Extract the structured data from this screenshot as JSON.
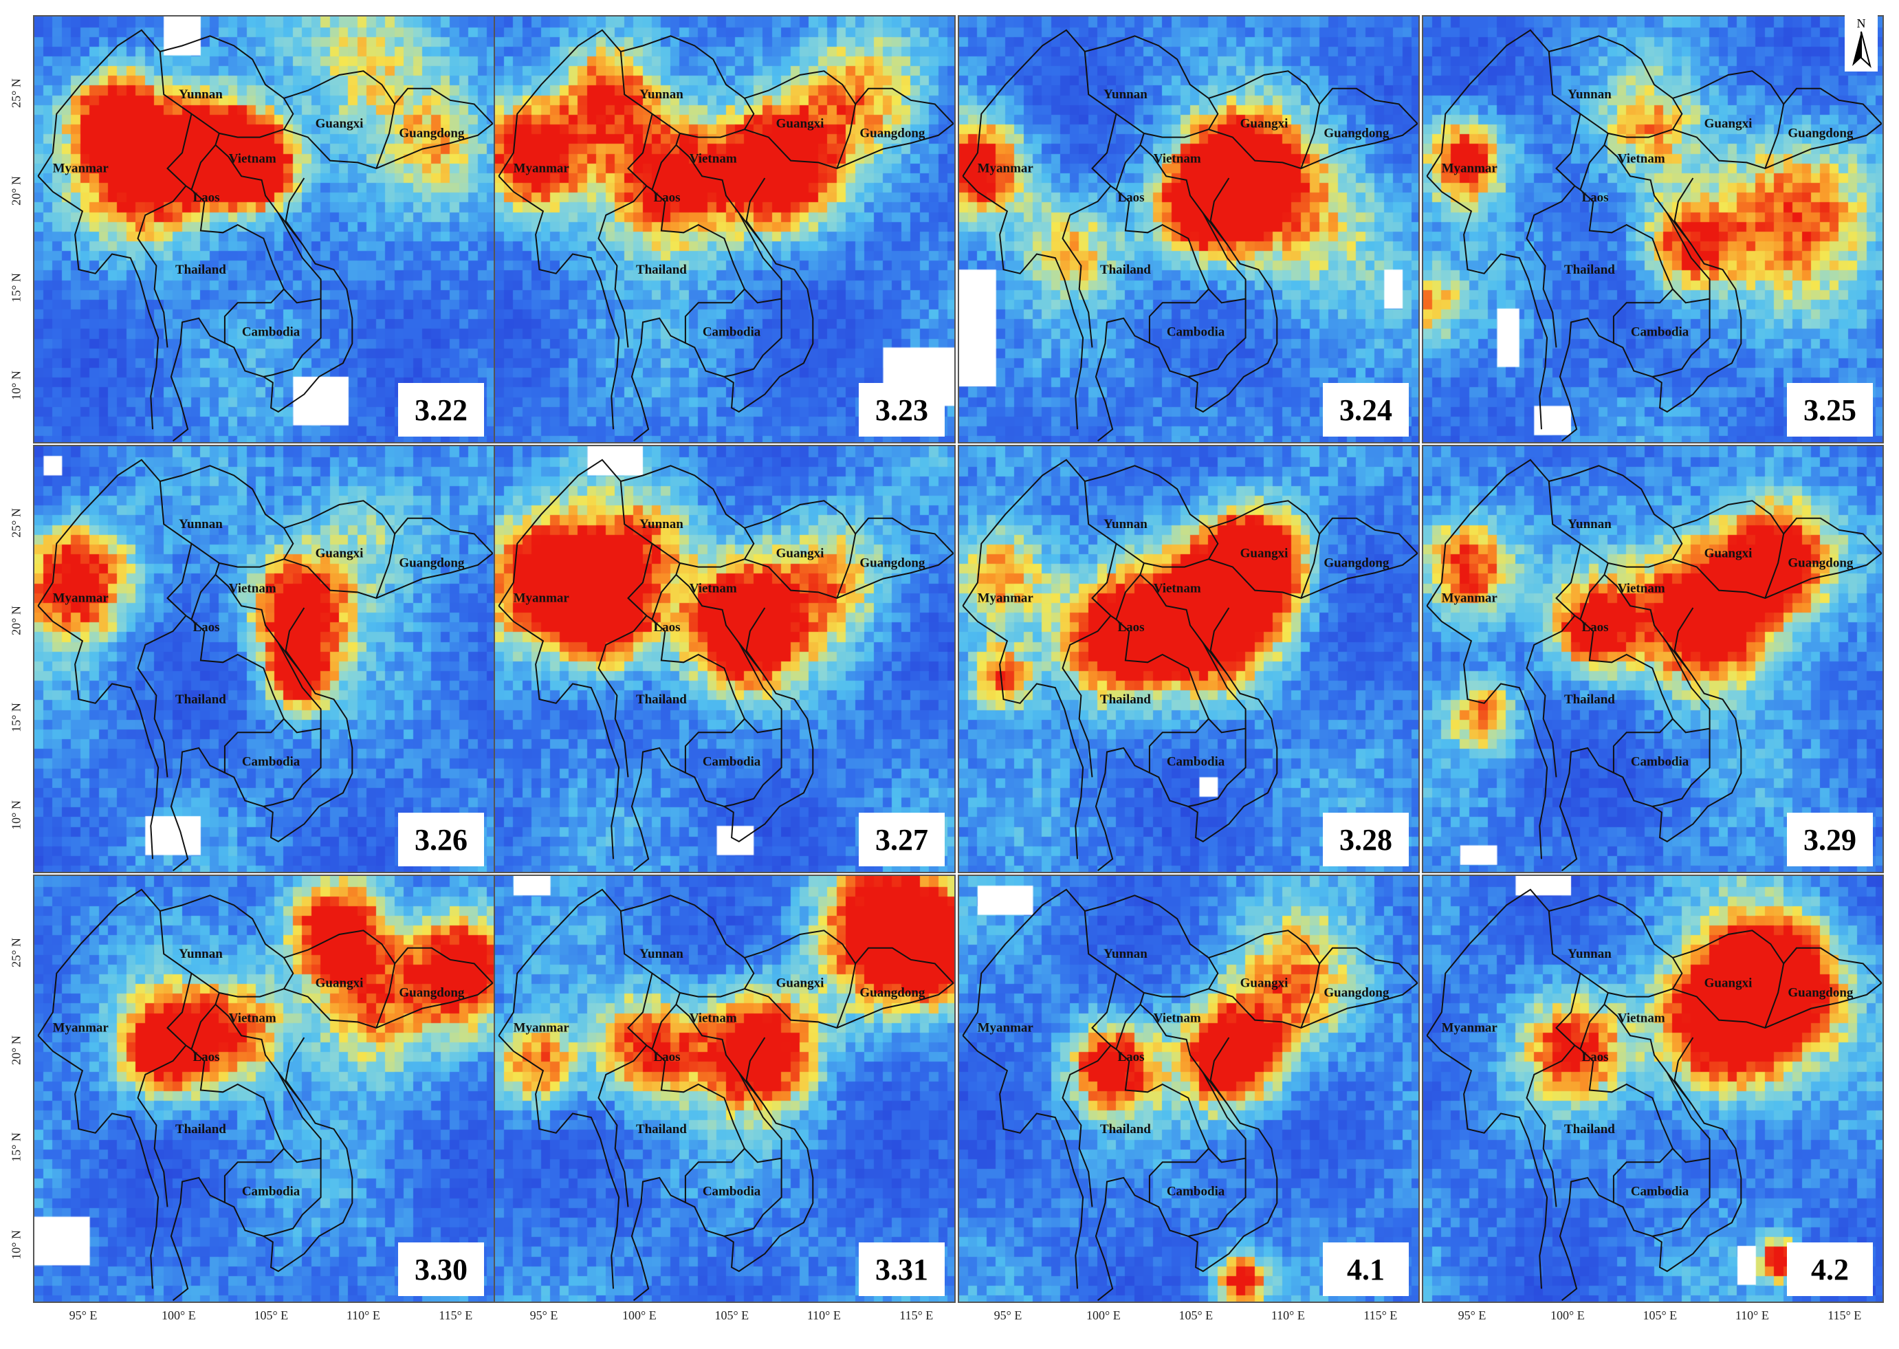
{
  "panels": [
    {
      "date": "3.22",
      "hotspots": [
        [
          98,
          21,
          4,
          0.95
        ],
        [
          102,
          22,
          3,
          0.9
        ],
        [
          104,
          21,
          2.5,
          0.9
        ],
        [
          96,
          24,
          2.5,
          0.6
        ],
        [
          110,
          27,
          5,
          0.45
        ],
        [
          114,
          22,
          3,
          0.35
        ]
      ],
      "nodata": [
        [
          106,
          8,
          3,
          2.5
        ],
        [
          99,
          27,
          2,
          2
        ]
      ]
    },
    {
      "date": "3.23",
      "hotspots": [
        [
          94,
          21.5,
          3,
          0.85
        ],
        [
          101,
          20.5,
          4,
          0.95
        ],
        [
          107,
          21,
          3.5,
          0.95
        ],
        [
          98,
          25,
          3,
          0.7
        ],
        [
          112,
          25,
          4,
          0.5
        ]
      ],
      "nodata": [
        [
          113,
          9,
          4,
          3
        ]
      ]
    },
    {
      "date": "3.24",
      "hotspots": [
        [
          93,
          21,
          3,
          0.85
        ],
        [
          105,
          19,
          3,
          0.9
        ],
        [
          107,
          21,
          3,
          0.8
        ],
        [
          110,
          19,
          5,
          0.55
        ],
        [
          98,
          17,
          3,
          0.4
        ]
      ],
      "nodata": [
        [
          92,
          10,
          2,
          6
        ],
        [
          115,
          14,
          1,
          2
        ]
      ]
    },
    {
      "date": "3.25",
      "hotspots": [
        [
          94,
          21.5,
          2.5,
          0.85
        ],
        [
          106,
          17,
          3,
          0.75
        ],
        [
          112,
          19,
          5,
          0.6
        ],
        [
          104,
          23,
          3,
          0.45
        ],
        [
          92,
          14,
          2,
          0.5
        ]
      ],
      "nodata": [
        [
          96,
          11,
          1.2,
          3
        ],
        [
          98,
          7.5,
          2,
          1.5
        ]
      ]
    },
    {
      "date": "3.26",
      "hotspots": [
        [
          94,
          22,
          3.5,
          0.85
        ],
        [
          106,
          20.5,
          3,
          0.95
        ],
        [
          106,
          17,
          2,
          0.8
        ],
        [
          110,
          25,
          4,
          0.4
        ]
      ],
      "nodata": [
        [
          98,
          8,
          3,
          2
        ],
        [
          92.5,
          27.5,
          1,
          1
        ]
      ]
    },
    {
      "date": "3.27",
      "hotspots": [
        [
          95,
          22,
          4,
          1.0
        ],
        [
          98,
          20,
          3,
          0.9
        ],
        [
          105,
          19.5,
          3.5,
          1.0
        ],
        [
          110,
          22,
          4,
          0.5
        ],
        [
          100,
          24,
          3,
          0.5
        ]
      ],
      "nodata": [
        [
          97,
          27.5,
          3,
          1.5
        ],
        [
          104,
          8,
          2,
          1.5
        ]
      ]
    },
    {
      "date": "3.28",
      "hotspots": [
        [
          105.5,
          20,
          4,
          1.05
        ],
        [
          108,
          23,
          3,
          1.0
        ],
        [
          100,
          19,
          3.5,
          0.95
        ],
        [
          94,
          22,
          3,
          0.7
        ],
        [
          94,
          17,
          2,
          0.7
        ]
      ],
      "nodata": [
        [
          105,
          11,
          1,
          1
        ]
      ]
    },
    {
      "date": "3.29",
      "hotspots": [
        [
          107,
          20,
          4,
          1.05
        ],
        [
          111,
          23,
          3.5,
          1.0
        ],
        [
          94,
          22.5,
          3,
          0.85
        ],
        [
          101,
          19.5,
          2.5,
          0.8
        ],
        [
          95,
          15,
          2,
          0.6
        ]
      ],
      "nodata": [
        [
          94,
          7.5,
          2,
          1
        ]
      ]
    },
    {
      "date": "3.30",
      "hotspots": [
        [
          108,
          26,
          3,
          1.0
        ],
        [
          115,
          24,
          3,
          0.8
        ],
        [
          99,
          20,
          3,
          0.95
        ],
        [
          103,
          21,
          3,
          0.6
        ],
        [
          110,
          22,
          4,
          0.6
        ]
      ],
      "nodata": [
        [
          92,
          9,
          3,
          2.5
        ]
      ]
    },
    {
      "date": "3.31",
      "hotspots": [
        [
          113,
          26,
          4,
          1.0
        ],
        [
          116,
          25,
          2.5,
          0.95
        ],
        [
          106,
          20,
          3.5,
          1.0
        ],
        [
          100,
          20,
          3,
          0.75
        ],
        [
          94,
          19,
          2.5,
          0.7
        ]
      ],
      "nodata": [
        [
          93,
          28,
          2,
          1
        ]
      ]
    },
    {
      "date": "4.1",
      "hotspots": [
        [
          106.5,
          19.5,
          3,
          1.0
        ],
        [
          100,
          19,
          2.5,
          0.85
        ],
        [
          110,
          23,
          4,
          0.55
        ],
        [
          107,
          8,
          1.5,
          0.8
        ]
      ],
      "nodata": [
        [
          93,
          27,
          3,
          1.5
        ]
      ]
    },
    {
      "date": "4.2",
      "hotspots": [
        [
          108,
          21,
          4,
          1.05
        ],
        [
          111,
          23.5,
          4,
          1.0
        ],
        [
          100,
          20,
          3,
          0.7
        ],
        [
          111,
          9,
          1.2,
          0.9
        ]
      ],
      "nodata": [
        [
          97,
          28,
          3,
          1
        ],
        [
          109,
          8,
          1,
          2
        ]
      ]
    }
  ],
  "places": [
    {
      "name": "Yunnan",
      "lon": 101,
      "lat": 24.8
    },
    {
      "name": "Guangxi",
      "lon": 108.5,
      "lat": 23.3
    },
    {
      "name": "Guangdong",
      "lon": 113.5,
      "lat": 22.8
    },
    {
      "name": "Myanmar",
      "lon": 94.5,
      "lat": 21.0
    },
    {
      "name": "Vietnam",
      "lon": 103.8,
      "lat": 21.5
    },
    {
      "name": "Laos",
      "lon": 101.3,
      "lat": 19.5
    },
    {
      "name": "Thailand",
      "lon": 101,
      "lat": 15.8
    },
    {
      "name": "Cambodia",
      "lon": 104.8,
      "lat": 12.6
    }
  ],
  "x_ticks": [
    "95° E",
    "100° E",
    "105° E",
    "110° E",
    "115° E"
  ],
  "x_tick_values": [
    95,
    100,
    105,
    110,
    115
  ],
  "y_ticks": [
    "25° N",
    "20° N",
    "15° N",
    "10° N"
  ],
  "y_tick_values": [
    25,
    20,
    15,
    10
  ],
  "lon_range": [
    92,
    117
  ],
  "lat_range": [
    7,
    29
  ],
  "north_label": "N",
  "colors": {
    "low": "#2f4fe0",
    "mid": "#52c8f0",
    "high_yellow": "#f5e64a",
    "high": "#ee1c0e",
    "nodata": "#ffffff"
  }
}
